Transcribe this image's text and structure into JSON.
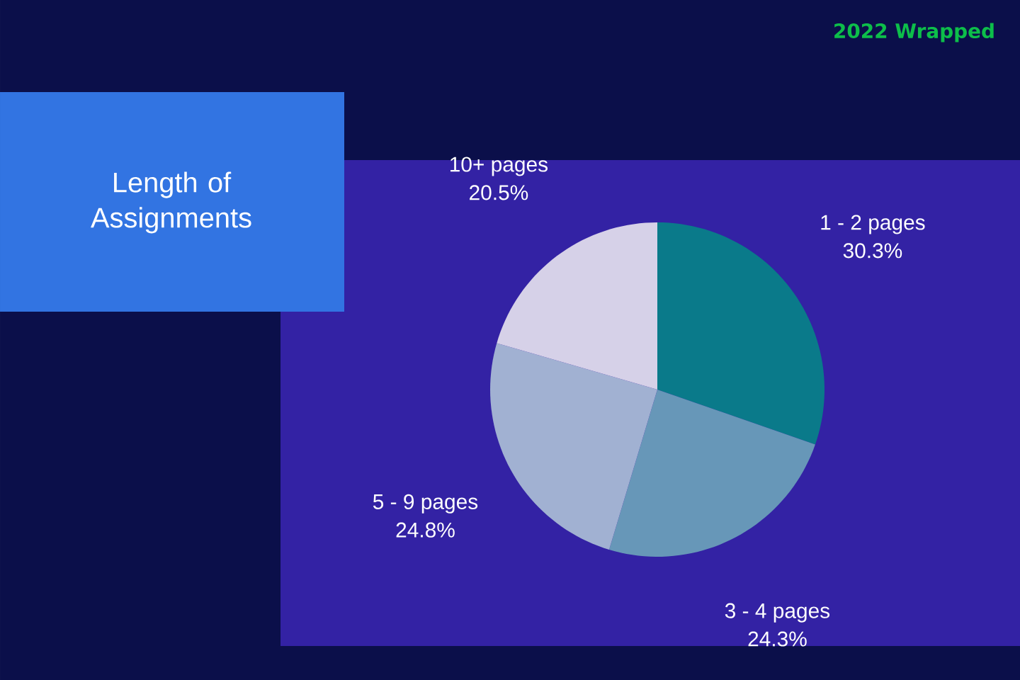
{
  "chart_data": {
    "type": "pie",
    "title": "Length of Assignments",
    "subtitle": "2022 Wrapped",
    "categories": [
      "1 - 2 pages",
      "3 - 4 pages",
      "5 - 9 pages",
      "10+ pages"
    ],
    "values": [
      30.3,
      24.3,
      24.8,
      20.5
    ],
    "colors": [
      "#0a7a8a",
      "#6797b8",
      "#a1b1d2",
      "#d6d1e8"
    ],
    "value_labels": [
      "30.3%",
      "24.3%",
      "24.8%",
      "20.5%"
    ]
  }
}
